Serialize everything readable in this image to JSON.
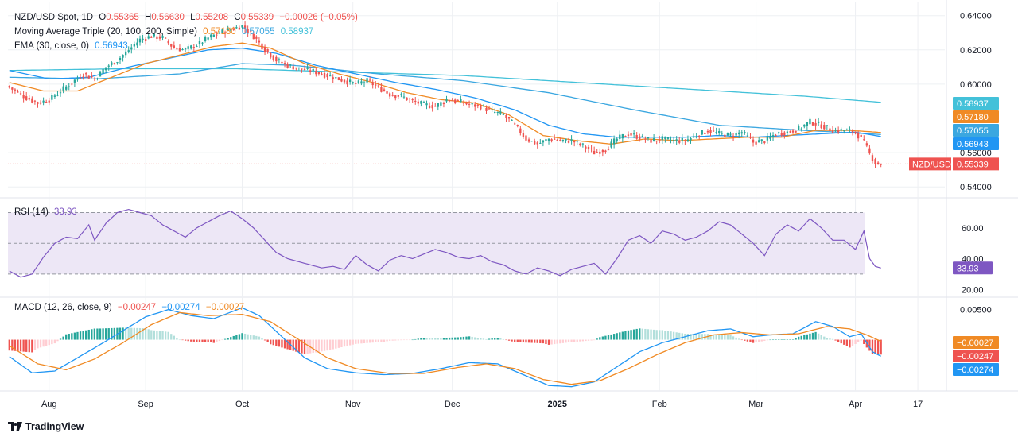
{
  "colors": {
    "up": "#26a69a",
    "down": "#ef5350",
    "sma20": "#f08a24",
    "sma100": "#3ba7e0",
    "sma200": "#43c1d9",
    "ema30": "#2196f3",
    "rsi": "#7e57c2",
    "rsi_band": "#ede7f6",
    "macd": "#2196f3",
    "signal": "#f08a24",
    "hist_up_strong": "#26a69a",
    "hist_up_weak": "#b2dfdb",
    "hist_dn_strong": "#ef5350",
    "hist_dn_weak": "#ffcdd2",
    "grid": "#eef0f3",
    "axis_text": "#131722"
  },
  "legend": {
    "main": {
      "symbol": "NZD/USD Spot, 1D",
      "o_label": "O",
      "o": "0.55365",
      "h_label": "H",
      "h": "0.56630",
      "l_label": "L",
      "l": "0.55208",
      "c_label": "C",
      "c": "0.55339",
      "chg": "−0.00026 (−0.05%)"
    },
    "ma_triple": {
      "name": "Moving Average Triple (20, 100, 200, Simple)",
      "v1": "0.57180",
      "v2": "0.57055",
      "v3": "0.58937"
    },
    "ema": {
      "name": "EMA (30, close, 0)",
      "v": "0.56943"
    },
    "rsi": {
      "name": "RSI (14)",
      "v": "33.93"
    },
    "macd": {
      "name": "MACD (12, 26, close, 9)",
      "hist": "−0.00247",
      "macd": "−0.00274",
      "signal": "−0.00027"
    }
  },
  "brand": {
    "name": "TradingView"
  },
  "chart_data": {
    "type": "candlestick",
    "instrument": "NZD/USD",
    "timeframe": "1D",
    "x_tick_labels": [
      "Aug",
      "Sep",
      "Oct",
      "Nov",
      "Dec",
      "2025",
      "Feb",
      "Mar",
      "Apr",
      "17"
    ],
    "x_tick_bar_index": [
      14,
      48,
      82,
      121,
      156,
      193,
      229,
      263,
      298,
      320
    ],
    "n_bars": 308,
    "bar_slots": 330,
    "price_axis": {
      "ylim": [
        0.535,
        0.6445
      ],
      "ticks": [
        "0.64000",
        "0.62000",
        "0.60000",
        "0.56000",
        "0.54000"
      ],
      "tick_values": [
        0.64,
        0.62,
        0.6,
        0.56,
        0.54
      ]
    },
    "price_path": [
      [
        0,
        0.598
      ],
      [
        6,
        0.592
      ],
      [
        10,
        0.589
      ],
      [
        14,
        0.591
      ],
      [
        18,
        0.596
      ],
      [
        22,
        0.601
      ],
      [
        26,
        0.606
      ],
      [
        30,
        0.603
      ],
      [
        34,
        0.61
      ],
      [
        38,
        0.614
      ],
      [
        42,
        0.62
      ],
      [
        46,
        0.626
      ],
      [
        50,
        0.628
      ],
      [
        54,
        0.627
      ],
      [
        58,
        0.621
      ],
      [
        62,
        0.62
      ],
      [
        66,
        0.623
      ],
      [
        70,
        0.627
      ],
      [
        74,
        0.63
      ],
      [
        78,
        0.632
      ],
      [
        82,
        0.634
      ],
      [
        86,
        0.628
      ],
      [
        90,
        0.62
      ],
      [
        94,
        0.614
      ],
      [
        98,
        0.611
      ],
      [
        102,
        0.609
      ],
      [
        106,
        0.608
      ],
      [
        110,
        0.606
      ],
      [
        114,
        0.604
      ],
      [
        118,
        0.602
      ],
      [
        122,
        0.6
      ],
      [
        126,
        0.602
      ],
      [
        130,
        0.598
      ],
      [
        134,
        0.594
      ],
      [
        138,
        0.593
      ],
      [
        142,
        0.59
      ],
      [
        146,
        0.588
      ],
      [
        150,
        0.587
      ],
      [
        154,
        0.591
      ],
      [
        158,
        0.59
      ],
      [
        162,
        0.588
      ],
      [
        166,
        0.587
      ],
      [
        170,
        0.584
      ],
      [
        174,
        0.582
      ],
      [
        178,
        0.576
      ],
      [
        182,
        0.568
      ],
      [
        186,
        0.565
      ],
      [
        190,
        0.568
      ],
      [
        194,
        0.567
      ],
      [
        198,
        0.567
      ],
      [
        202,
        0.564
      ],
      [
        206,
        0.56
      ],
      [
        210,
        0.562
      ],
      [
        214,
        0.568
      ],
      [
        218,
        0.571
      ],
      [
        222,
        0.569
      ],
      [
        226,
        0.567
      ],
      [
        230,
        0.568
      ],
      [
        234,
        0.567
      ],
      [
        238,
        0.567
      ],
      [
        242,
        0.57
      ],
      [
        246,
        0.573
      ],
      [
        250,
        0.571
      ],
      [
        254,
        0.57
      ],
      [
        258,
        0.572
      ],
      [
        262,
        0.566
      ],
      [
        266,
        0.567
      ],
      [
        270,
        0.571
      ],
      [
        274,
        0.572
      ],
      [
        278,
        0.574
      ],
      [
        282,
        0.578
      ],
      [
        286,
        0.576
      ],
      [
        290,
        0.573
      ],
      [
        294,
        0.573
      ],
      [
        298,
        0.572
      ],
      [
        301,
        0.566
      ],
      [
        303,
        0.559
      ],
      [
        305,
        0.554
      ],
      [
        307,
        0.5534
      ]
    ],
    "sma20_path": [
      [
        0,
        0.601
      ],
      [
        12,
        0.596
      ],
      [
        24,
        0.596
      ],
      [
        36,
        0.604
      ],
      [
        48,
        0.612
      ],
      [
        60,
        0.617
      ],
      [
        72,
        0.622
      ],
      [
        82,
        0.624
      ],
      [
        92,
        0.621
      ],
      [
        104,
        0.612
      ],
      [
        116,
        0.606
      ],
      [
        128,
        0.601
      ],
      [
        140,
        0.595
      ],
      [
        152,
        0.591
      ],
      [
        164,
        0.589
      ],
      [
        176,
        0.582
      ],
      [
        188,
        0.57
      ],
      [
        200,
        0.567
      ],
      [
        212,
        0.565
      ],
      [
        224,
        0.568
      ],
      [
        236,
        0.567
      ],
      [
        248,
        0.568
      ],
      [
        260,
        0.569
      ],
      [
        272,
        0.569
      ],
      [
        284,
        0.573
      ],
      [
        296,
        0.573
      ],
      [
        307,
        0.5718
      ]
    ],
    "ema30_path": [
      [
        0,
        0.608
      ],
      [
        14,
        0.603
      ],
      [
        28,
        0.604
      ],
      [
        42,
        0.61
      ],
      [
        56,
        0.615
      ],
      [
        70,
        0.62
      ],
      [
        82,
        0.621
      ],
      [
        94,
        0.618
      ],
      [
        108,
        0.611
      ],
      [
        122,
        0.606
      ],
      [
        136,
        0.601
      ],
      [
        150,
        0.597
      ],
      [
        164,
        0.592
      ],
      [
        178,
        0.585
      ],
      [
        190,
        0.576
      ],
      [
        202,
        0.571
      ],
      [
        214,
        0.569
      ],
      [
        226,
        0.569
      ],
      [
        238,
        0.569
      ],
      [
        250,
        0.57
      ],
      [
        262,
        0.569
      ],
      [
        274,
        0.57
      ],
      [
        286,
        0.571
      ],
      [
        298,
        0.572
      ],
      [
        307,
        0.5694
      ]
    ],
    "sma100_path": [
      [
        0,
        0.604
      ],
      [
        30,
        0.603
      ],
      [
        60,
        0.606
      ],
      [
        82,
        0.612
      ],
      [
        100,
        0.611
      ],
      [
        130,
        0.606
      ],
      [
        160,
        0.602
      ],
      [
        190,
        0.595
      ],
      [
        220,
        0.585
      ],
      [
        250,
        0.576
      ],
      [
        280,
        0.573
      ],
      [
        307,
        0.5706
      ]
    ],
    "sma200_path": [
      [
        0,
        0.608
      ],
      [
        40,
        0.609
      ],
      [
        80,
        0.609
      ],
      [
        120,
        0.607
      ],
      [
        160,
        0.605
      ],
      [
        200,
        0.601
      ],
      [
        240,
        0.597
      ],
      [
        280,
        0.593
      ],
      [
        307,
        0.5894
      ]
    ],
    "last_price": {
      "label": "NZD/USD",
      "value": "0.55339",
      "v": 0.55339
    },
    "price_badges": [
      {
        "value": "0.58937",
        "v": 0.58937,
        "key": "sma200"
      },
      {
        "value": "0.57180",
        "v": 0.5718,
        "key": "sma20"
      },
      {
        "value": "0.57055",
        "v": 0.57055,
        "key": "sma100"
      },
      {
        "value": "0.56943",
        "v": 0.56943,
        "key": "ema30"
      }
    ],
    "rsi": {
      "ylim": [
        16,
        78
      ],
      "ticks": [
        "60.00",
        "40.00",
        "20.00"
      ],
      "tick_values": [
        60,
        40,
        20
      ],
      "bands": [
        70,
        50,
        30
      ],
      "last": "33.93",
      "path": [
        [
          0,
          32
        ],
        [
          4,
          28
        ],
        [
          8,
          30
        ],
        [
          12,
          41
        ],
        [
          16,
          50
        ],
        [
          20,
          54
        ],
        [
          24,
          53
        ],
        [
          28,
          62
        ],
        [
          30,
          52
        ],
        [
          34,
          63
        ],
        [
          38,
          70
        ],
        [
          42,
          72
        ],
        [
          46,
          70
        ],
        [
          50,
          68
        ],
        [
          54,
          62
        ],
        [
          58,
          58
        ],
        [
          62,
          54
        ],
        [
          66,
          60
        ],
        [
          70,
          64
        ],
        [
          74,
          68
        ],
        [
          78,
          71
        ],
        [
          82,
          66
        ],
        [
          86,
          60
        ],
        [
          90,
          52
        ],
        [
          94,
          44
        ],
        [
          98,
          40
        ],
        [
          102,
          38
        ],
        [
          106,
          36
        ],
        [
          110,
          34
        ],
        [
          114,
          35
        ],
        [
          118,
          33
        ],
        [
          122,
          42
        ],
        [
          126,
          36
        ],
        [
          130,
          32
        ],
        [
          134,
          39
        ],
        [
          138,
          42
        ],
        [
          142,
          40
        ],
        [
          146,
          43
        ],
        [
          150,
          46
        ],
        [
          154,
          44
        ],
        [
          158,
          41
        ],
        [
          162,
          40
        ],
        [
          166,
          42
        ],
        [
          170,
          38
        ],
        [
          174,
          36
        ],
        [
          178,
          32
        ],
        [
          182,
          30
        ],
        [
          186,
          34
        ],
        [
          190,
          32
        ],
        [
          194,
          29
        ],
        [
          198,
          33
        ],
        [
          202,
          35
        ],
        [
          206,
          37
        ],
        [
          210,
          30
        ],
        [
          214,
          40
        ],
        [
          218,
          52
        ],
        [
          222,
          55
        ],
        [
          226,
          50
        ],
        [
          230,
          58
        ],
        [
          234,
          56
        ],
        [
          238,
          52
        ],
        [
          242,
          54
        ],
        [
          246,
          58
        ],
        [
          250,
          64
        ],
        [
          254,
          62
        ],
        [
          258,
          56
        ],
        [
          262,
          50
        ],
        [
          266,
          42
        ],
        [
          270,
          56
        ],
        [
          274,
          62
        ],
        [
          278,
          58
        ],
        [
          282,
          66
        ],
        [
          286,
          60
        ],
        [
          290,
          52
        ],
        [
          294,
          52
        ],
        [
          298,
          46
        ],
        [
          301,
          58
        ],
        [
          303,
          40
        ],
        [
          305,
          35
        ],
        [
          307,
          33.93
        ]
      ]
    },
    "macd": {
      "ylim": [
        -0.0085,
        0.0068
      ],
      "ticks": [
        "0.00500"
      ],
      "tick_values": [
        0.005
      ],
      "macd_path": [
        [
          0,
          -0.0028
        ],
        [
          8,
          -0.0055
        ],
        [
          16,
          -0.0052
        ],
        [
          24,
          -0.003
        ],
        [
          32,
          -0.0008
        ],
        [
          40,
          0.0015
        ],
        [
          48,
          0.0038
        ],
        [
          56,
          0.005
        ],
        [
          64,
          0.004
        ],
        [
          72,
          0.0035
        ],
        [
          82,
          0.0053
        ],
        [
          88,
          0.004
        ],
        [
          96,
          0.0005
        ],
        [
          104,
          -0.003
        ],
        [
          112,
          -0.0048
        ],
        [
          122,
          -0.0055
        ],
        [
          132,
          -0.0058
        ],
        [
          142,
          -0.0056
        ],
        [
          152,
          -0.0048
        ],
        [
          162,
          -0.0038
        ],
        [
          172,
          -0.004
        ],
        [
          182,
          -0.006
        ],
        [
          190,
          -0.0076
        ],
        [
          198,
          -0.0078
        ],
        [
          206,
          -0.007
        ],
        [
          214,
          -0.0045
        ],
        [
          222,
          -0.002
        ],
        [
          230,
          -0.0005
        ],
        [
          238,
          0.0005
        ],
        [
          246,
          0.0015
        ],
        [
          254,
          0.0018
        ],
        [
          262,
          0.0005
        ],
        [
          268,
          0.0008
        ],
        [
          276,
          0.001
        ],
        [
          284,
          0.003
        ],
        [
          290,
          0.0022
        ],
        [
          296,
          0.0005
        ],
        [
          300,
          0.001
        ],
        [
          304,
          -0.002
        ],
        [
          307,
          -0.00274
        ]
      ],
      "signal_path": [
        [
          0,
          -0.001
        ],
        [
          10,
          -0.004
        ],
        [
          20,
          -0.005
        ],
        [
          30,
          -0.0032
        ],
        [
          40,
          -0.0005
        ],
        [
          50,
          0.0025
        ],
        [
          60,
          0.0045
        ],
        [
          70,
          0.004
        ],
        [
          82,
          0.0042
        ],
        [
          92,
          0.003
        ],
        [
          102,
          0.0
        ],
        [
          112,
          -0.003
        ],
        [
          122,
          -0.0048
        ],
        [
          134,
          -0.0056
        ],
        [
          146,
          -0.0056
        ],
        [
          158,
          -0.0046
        ],
        [
          168,
          -0.004
        ],
        [
          178,
          -0.0048
        ],
        [
          188,
          -0.0066
        ],
        [
          198,
          -0.0074
        ],
        [
          208,
          -0.0068
        ],
        [
          218,
          -0.0048
        ],
        [
          228,
          -0.0025
        ],
        [
          238,
          -0.0005
        ],
        [
          248,
          0.0008
        ],
        [
          258,
          0.0012
        ],
        [
          268,
          0.0008
        ],
        [
          278,
          0.001
        ],
        [
          288,
          0.0022
        ],
        [
          296,
          0.0018
        ],
        [
          302,
          0.0008
        ],
        [
          307,
          -0.00027
        ]
      ],
      "last_hist": "−0.00247"
    }
  }
}
